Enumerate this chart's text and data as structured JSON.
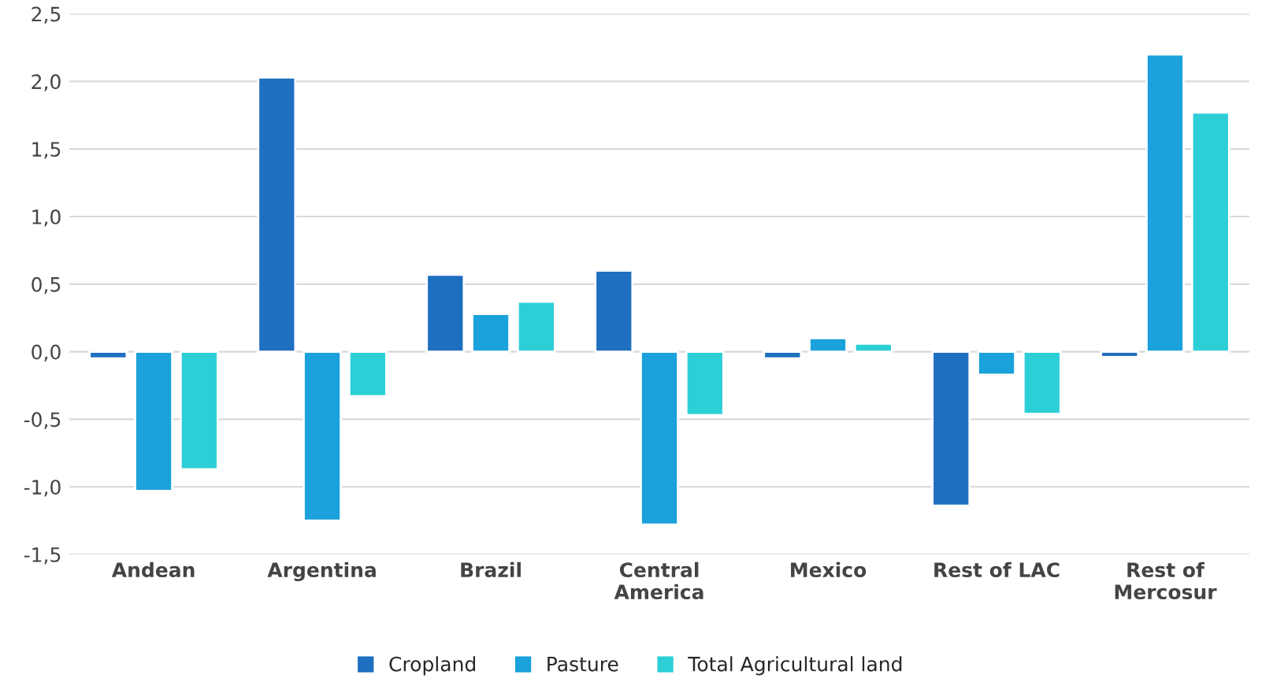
{
  "chart_data": {
    "type": "bar",
    "categories": [
      "Andean",
      "Argentina",
      "Brazil",
      "Central\nAmerica",
      "Mexico",
      "Rest of LAC",
      "Rest of\nMercosur"
    ],
    "series": [
      {
        "name": "Cropland",
        "color": "#1f6fc0",
        "values": [
          -0.05,
          2.03,
          0.57,
          0.6,
          -0.05,
          -1.14,
          -0.04
        ]
      },
      {
        "name": "Pasture",
        "color": "#1ba1db",
        "values": [
          -1.03,
          -1.25,
          0.28,
          -1.28,
          0.1,
          -0.17,
          2.2
        ]
      },
      {
        "name": "Total Agricultural land",
        "color": "#2dcfd6",
        "values": [
          -0.87,
          -0.33,
          0.37,
          -0.47,
          0.06,
          -0.46,
          1.77
        ]
      }
    ],
    "ylim": [
      -1.5,
      2.5
    ],
    "yticks": [
      {
        "value": -1.5,
        "label": "-1,5"
      },
      {
        "value": -1.0,
        "label": "-1,0"
      },
      {
        "value": -0.5,
        "label": "-0,5"
      },
      {
        "value": 0.0,
        "label": "0,0"
      },
      {
        "value": 0.5,
        "label": "0,5"
      },
      {
        "value": 1.0,
        "label": "1,0"
      },
      {
        "value": 1.5,
        "label": "1,5"
      },
      {
        "value": 2.0,
        "label": "2,0"
      },
      {
        "value": 2.5,
        "label": "2,5"
      }
    ],
    "grid": "y",
    "legend": "bottom"
  }
}
